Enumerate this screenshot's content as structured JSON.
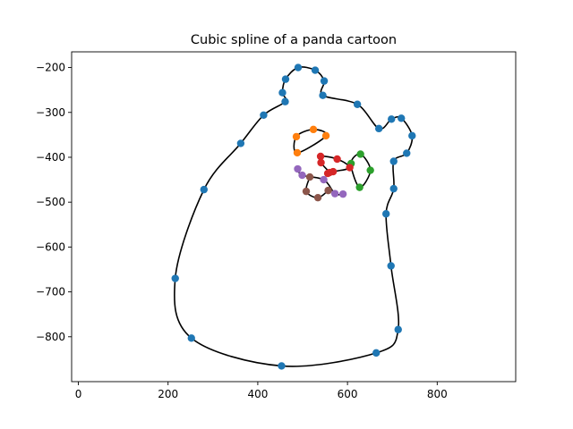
{
  "chart_data": {
    "type": "scatter",
    "title": "Cubic spline of a panda cartoon",
    "xlabel": "",
    "ylabel": "",
    "xlim": [
      -15,
      975
    ],
    "ylim": [
      -900,
      -165
    ],
    "x_ticks": [
      0,
      200,
      400,
      600,
      800
    ],
    "y_ticks": [
      -200,
      -300,
      -400,
      -500,
      -600,
      -700,
      -800
    ],
    "grid": false,
    "spline_color": "#000000",
    "series": [
      {
        "color": "#1f77b4",
        "closed": true,
        "points": [
          [
            490,
            -200
          ],
          [
            528,
            -206
          ],
          [
            548,
            -230
          ],
          [
            545,
            -262
          ],
          [
            622,
            -282
          ],
          [
            670,
            -336
          ],
          [
            698,
            -315
          ],
          [
            720,
            -313
          ],
          [
            744,
            -352
          ],
          [
            732,
            -391
          ],
          [
            703,
            -409
          ],
          [
            703,
            -470
          ],
          [
            686,
            -526
          ],
          [
            697,
            -642
          ],
          [
            713,
            -784
          ],
          [
            664,
            -836
          ],
          [
            453,
            -865
          ],
          [
            252,
            -803
          ],
          [
            216,
            -670
          ],
          [
            280,
            -472
          ],
          [
            362,
            -369
          ],
          [
            413,
            -306
          ],
          [
            461,
            -276
          ],
          [
            455,
            -256
          ],
          [
            462,
            -226
          ]
        ]
      },
      {
        "color": "#ff7f0e",
        "closed": true,
        "points": [
          [
            524,
            -338
          ],
          [
            552,
            -352
          ],
          [
            488,
            -390
          ],
          [
            486,
            -354
          ]
        ]
      },
      {
        "color": "#2ca02c",
        "closed": true,
        "points": [
          [
            629,
            -393
          ],
          [
            651,
            -429
          ],
          [
            627,
            -467
          ],
          [
            608,
            -414
          ]
        ]
      },
      {
        "color": "#d62728",
        "closed": true,
        "points": [
          [
            540,
            -398
          ],
          [
            577,
            -404
          ],
          [
            605,
            -423
          ],
          [
            568,
            -432
          ],
          [
            556,
            -436
          ],
          [
            560,
            -434
          ],
          [
            541,
            -412
          ]
        ]
      },
      {
        "color": "#9467bd",
        "closed": false,
        "points": [
          [
            489,
            -426
          ],
          [
            499,
            -440
          ],
          [
            547,
            -450
          ],
          [
            572,
            -481
          ],
          [
            590,
            -482
          ]
        ]
      },
      {
        "color": "#8c564b",
        "closed": false,
        "points": [
          [
            516,
            -444
          ],
          [
            508,
            -476
          ],
          [
            534,
            -490
          ],
          [
            557,
            -474
          ]
        ]
      }
    ]
  }
}
